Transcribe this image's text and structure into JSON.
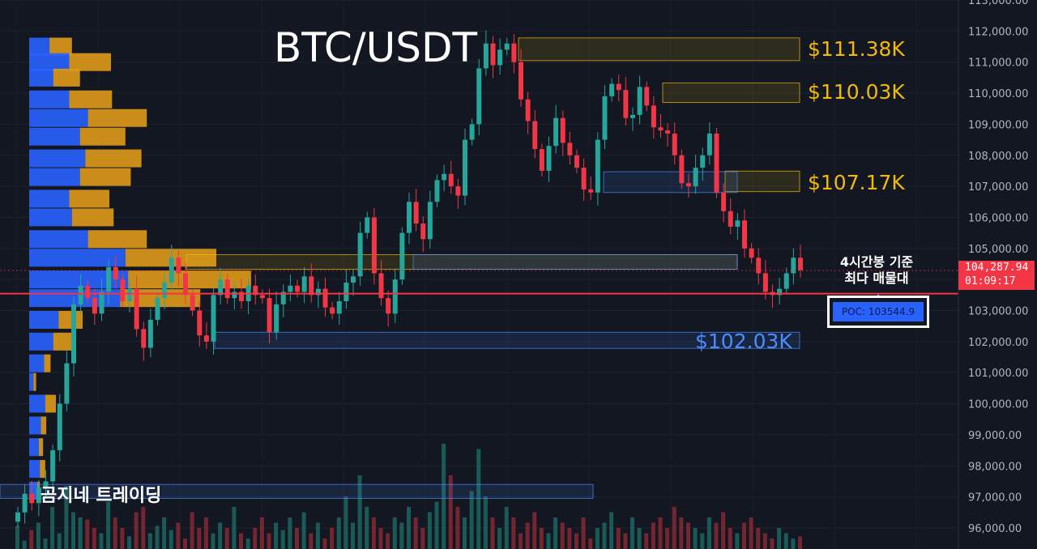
{
  "header": {
    "title": "BTC/USDT"
  },
  "levels": [
    {
      "label": "$111.38K",
      "value": 111380,
      "color": "#f0b90b"
    },
    {
      "label": "$110.03K",
      "value": 110030,
      "color": "#f0b90b"
    },
    {
      "label": "$107.17K",
      "value": 107170,
      "color": "#f0b90b"
    },
    {
      "label": "$102.03K",
      "value": 102030,
      "color": "#4a8cff"
    }
  ],
  "annotation": {
    "line1": "4시간봉 기준",
    "line2": "최다 매물대"
  },
  "poc": {
    "label": "POC: 103544.9",
    "value": 103544.9
  },
  "current_price": {
    "price": "104,287.94",
    "countdown": "01:09:17",
    "value": 104287.94
  },
  "watermark": "곰지네 트레이딩",
  "colors": {
    "up": "#26a69a",
    "down": "#f23645",
    "poc_line": "#f23645",
    "vp_buy": "#2962ff",
    "vp_sell": "#e09a1a",
    "background": "#131722"
  },
  "chart_data": {
    "type": "candlestick",
    "title": "BTC/USDT",
    "y_ticks": [
      "96,000.00",
      "97,000.00",
      "98,000.00",
      "99,000.00",
      "100,000.00",
      "101,000.00",
      "102,000.00",
      "103,000.00",
      "104,000.00",
      "105,000.00",
      "106,000.00",
      "107,000.00",
      "108,000.00",
      "109,000.00",
      "110,000.00",
      "111,000.00",
      "112,000.00",
      "113,000.00"
    ],
    "ylim": [
      95400,
      113200
    ],
    "close_path": [
      96500,
      97100,
      96800,
      97300,
      97500,
      98500,
      100000,
      101300,
      103200,
      103800,
      103400,
      102900,
      103600,
      104400,
      104000,
      103300,
      103700,
      102400,
      101800,
      102700,
      103400,
      103900,
      104700,
      104200,
      103500,
      103000,
      102200,
      102000,
      103500,
      104000,
      103400,
      103600,
      103300,
      103800,
      103500,
      103400,
      102300,
      103200,
      103600,
      103800,
      103600,
      104100,
      103500,
      103700,
      103100,
      102900,
      103300,
      103900,
      104100,
      105500,
      106000,
      104200,
      103400,
      102900,
      104000,
      105500,
      106500,
      105800,
      105300,
      106500,
      107200,
      107400,
      107000,
      106700,
      108500,
      109000,
      110800,
      111600,
      110900,
      111400,
      111600,
      111000,
      109800,
      109100,
      108200,
      107500,
      108300,
      109200,
      108400,
      108000,
      107600,
      106900,
      106800,
      108500,
      109900,
      110300,
      110100,
      109200,
      109300,
      110200,
      109600,
      108900,
      108800,
      108700,
      108000,
      107100,
      107000,
      107600,
      108000,
      108700,
      106800,
      106200,
      105700,
      105900,
      105000,
      104700,
      104200,
      103600,
      103500,
      103700,
      104200,
      104700,
      104300
    ]
  },
  "volume_profile": [
    {
      "price": 111500,
      "buy": 0.38,
      "sell": 0.42
    },
    {
      "price": 111000,
      "buy": 0.75,
      "sell": 0.78
    },
    {
      "price": 110500,
      "buy": 0.45,
      "sell": 0.5
    },
    {
      "price": 109800,
      "buy": 0.75,
      "sell": 0.8
    },
    {
      "price": 109200,
      "buy": 1.1,
      "sell": 1.1
    },
    {
      "price": 108600,
      "buy": 0.95,
      "sell": 0.85
    },
    {
      "price": 107900,
      "buy": 1.05,
      "sell": 1.05
    },
    {
      "price": 107300,
      "buy": 0.95,
      "sell": 0.95
    },
    {
      "price": 106600,
      "buy": 0.75,
      "sell": 0.75
    },
    {
      "price": 106000,
      "buy": 0.8,
      "sell": 0.78
    },
    {
      "price": 105300,
      "buy": 1.1,
      "sell": 1.1
    },
    {
      "price": 104700,
      "buy": 1.8,
      "sell": 1.7
    },
    {
      "price": 104000,
      "buy": 1.85,
      "sell": 2.3
    },
    {
      "price": 103400,
      "buy": 1.7,
      "sell": 1.5
    },
    {
      "price": 102700,
      "buy": 0.55,
      "sell": 0.45
    },
    {
      "price": 102000,
      "buy": 0.45,
      "sell": 0.4
    },
    {
      "price": 101300,
      "buy": 0.28,
      "sell": 0.12
    },
    {
      "price": 100700,
      "buy": 0.08,
      "sell": 0.05
    },
    {
      "price": 100000,
      "buy": 0.3,
      "sell": 0.2
    },
    {
      "price": 99300,
      "buy": 0.22,
      "sell": 0.1
    },
    {
      "price": 98600,
      "buy": 0.18,
      "sell": 0.08
    },
    {
      "price": 97900,
      "buy": 0.2,
      "sell": 0.1
    },
    {
      "price": 97200,
      "buy": 0.15,
      "sell": 0.05
    }
  ],
  "volume_bars": [
    0.22,
    0.08,
    0.18,
    0.25,
    0.1,
    0.4,
    0.15,
    0.6,
    0.35,
    0.3,
    0.28,
    0.2,
    0.15,
    0.45,
    0.3,
    0.2,
    0.12,
    0.35,
    0.4,
    0.15,
    0.22,
    0.3,
    0.18,
    0.25,
    0.1,
    0.35,
    0.2,
    0.3,
    0.15,
    0.25,
    0.2,
    0.4,
    0.15,
    0.1,
    0.2,
    0.3,
    0.15,
    0.25,
    0.18,
    0.3,
    0.2,
    0.35,
    0.15,
    0.25,
    0.1,
    0.2,
    0.3,
    0.5,
    0.25,
    0.7,
    0.4,
    0.3,
    0.2,
    0.15,
    0.3,
    0.25,
    0.4,
    0.3,
    0.2,
    0.35,
    0.45,
    1.0,
    0.7,
    0.4,
    0.3,
    0.55,
    0.95,
    0.5,
    0.3,
    0.2,
    0.4,
    0.3,
    0.15,
    0.25,
    0.35,
    0.2,
    0.15,
    0.3,
    0.25,
    0.2,
    0.15,
    0.3,
    0.1,
    0.2,
    0.25,
    0.35,
    0.2,
    0.15,
    0.3,
    0.2,
    0.15,
    0.25,
    0.3,
    0.2,
    0.4,
    0.3,
    0.25,
    0.2,
    0.15,
    0.3,
    0.25,
    0.35,
    0.2,
    0.15,
    0.25,
    0.3,
    0.2,
    0.15,
    0.1,
    0.2,
    0.15,
    0.1,
    0.12
  ]
}
